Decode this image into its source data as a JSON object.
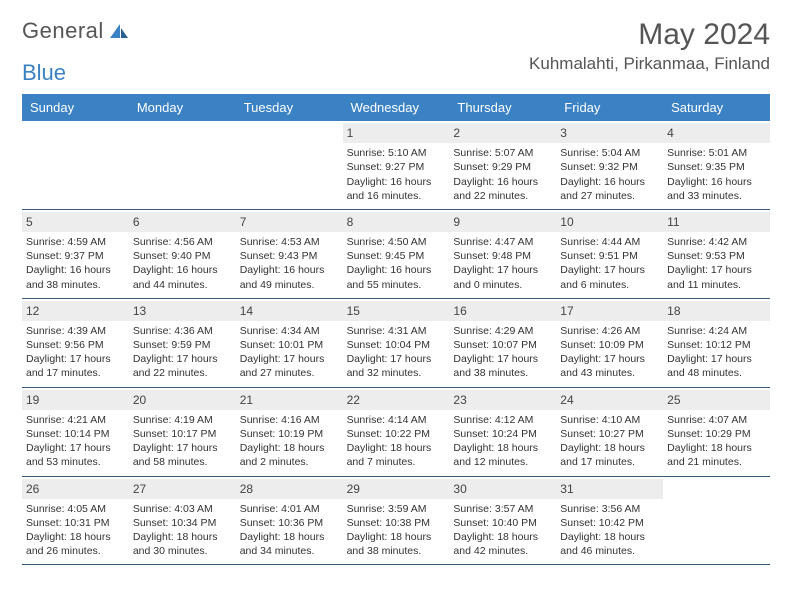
{
  "logo": {
    "text1": "General",
    "text2": "Blue"
  },
  "title": "May 2024",
  "location": "Kuhmalahti, Pirkanmaa, Finland",
  "colors": {
    "header_bg": "#3b82c4",
    "header_text": "#ffffff",
    "daynum_bg": "#ededed",
    "week_border": "#3b5a7a",
    "text": "#333333",
    "title_text": "#555555"
  },
  "day_names": [
    "Sunday",
    "Monday",
    "Tuesday",
    "Wednesday",
    "Thursday",
    "Friday",
    "Saturday"
  ],
  "weeks": [
    [
      {
        "day": "",
        "lines": [
          "",
          "",
          "",
          ""
        ]
      },
      {
        "day": "",
        "lines": [
          "",
          "",
          "",
          ""
        ]
      },
      {
        "day": "",
        "lines": [
          "",
          "",
          "",
          ""
        ]
      },
      {
        "day": "1",
        "lines": [
          "Sunrise: 5:10 AM",
          "Sunset: 9:27 PM",
          "Daylight: 16 hours",
          "and 16 minutes."
        ]
      },
      {
        "day": "2",
        "lines": [
          "Sunrise: 5:07 AM",
          "Sunset: 9:29 PM",
          "Daylight: 16 hours",
          "and 22 minutes."
        ]
      },
      {
        "day": "3",
        "lines": [
          "Sunrise: 5:04 AM",
          "Sunset: 9:32 PM",
          "Daylight: 16 hours",
          "and 27 minutes."
        ]
      },
      {
        "day": "4",
        "lines": [
          "Sunrise: 5:01 AM",
          "Sunset: 9:35 PM",
          "Daylight: 16 hours",
          "and 33 minutes."
        ]
      }
    ],
    [
      {
        "day": "5",
        "lines": [
          "Sunrise: 4:59 AM",
          "Sunset: 9:37 PM",
          "Daylight: 16 hours",
          "and 38 minutes."
        ]
      },
      {
        "day": "6",
        "lines": [
          "Sunrise: 4:56 AM",
          "Sunset: 9:40 PM",
          "Daylight: 16 hours",
          "and 44 minutes."
        ]
      },
      {
        "day": "7",
        "lines": [
          "Sunrise: 4:53 AM",
          "Sunset: 9:43 PM",
          "Daylight: 16 hours",
          "and 49 minutes."
        ]
      },
      {
        "day": "8",
        "lines": [
          "Sunrise: 4:50 AM",
          "Sunset: 9:45 PM",
          "Daylight: 16 hours",
          "and 55 minutes."
        ]
      },
      {
        "day": "9",
        "lines": [
          "Sunrise: 4:47 AM",
          "Sunset: 9:48 PM",
          "Daylight: 17 hours",
          "and 0 minutes."
        ]
      },
      {
        "day": "10",
        "lines": [
          "Sunrise: 4:44 AM",
          "Sunset: 9:51 PM",
          "Daylight: 17 hours",
          "and 6 minutes."
        ]
      },
      {
        "day": "11",
        "lines": [
          "Sunrise: 4:42 AM",
          "Sunset: 9:53 PM",
          "Daylight: 17 hours",
          "and 11 minutes."
        ]
      }
    ],
    [
      {
        "day": "12",
        "lines": [
          "Sunrise: 4:39 AM",
          "Sunset: 9:56 PM",
          "Daylight: 17 hours",
          "and 17 minutes."
        ]
      },
      {
        "day": "13",
        "lines": [
          "Sunrise: 4:36 AM",
          "Sunset: 9:59 PM",
          "Daylight: 17 hours",
          "and 22 minutes."
        ]
      },
      {
        "day": "14",
        "lines": [
          "Sunrise: 4:34 AM",
          "Sunset: 10:01 PM",
          "Daylight: 17 hours",
          "and 27 minutes."
        ]
      },
      {
        "day": "15",
        "lines": [
          "Sunrise: 4:31 AM",
          "Sunset: 10:04 PM",
          "Daylight: 17 hours",
          "and 32 minutes."
        ]
      },
      {
        "day": "16",
        "lines": [
          "Sunrise: 4:29 AM",
          "Sunset: 10:07 PM",
          "Daylight: 17 hours",
          "and 38 minutes."
        ]
      },
      {
        "day": "17",
        "lines": [
          "Sunrise: 4:26 AM",
          "Sunset: 10:09 PM",
          "Daylight: 17 hours",
          "and 43 minutes."
        ]
      },
      {
        "day": "18",
        "lines": [
          "Sunrise: 4:24 AM",
          "Sunset: 10:12 PM",
          "Daylight: 17 hours",
          "and 48 minutes."
        ]
      }
    ],
    [
      {
        "day": "19",
        "lines": [
          "Sunrise: 4:21 AM",
          "Sunset: 10:14 PM",
          "Daylight: 17 hours",
          "and 53 minutes."
        ]
      },
      {
        "day": "20",
        "lines": [
          "Sunrise: 4:19 AM",
          "Sunset: 10:17 PM",
          "Daylight: 17 hours",
          "and 58 minutes."
        ]
      },
      {
        "day": "21",
        "lines": [
          "Sunrise: 4:16 AM",
          "Sunset: 10:19 PM",
          "Daylight: 18 hours",
          "and 2 minutes."
        ]
      },
      {
        "day": "22",
        "lines": [
          "Sunrise: 4:14 AM",
          "Sunset: 10:22 PM",
          "Daylight: 18 hours",
          "and 7 minutes."
        ]
      },
      {
        "day": "23",
        "lines": [
          "Sunrise: 4:12 AM",
          "Sunset: 10:24 PM",
          "Daylight: 18 hours",
          "and 12 minutes."
        ]
      },
      {
        "day": "24",
        "lines": [
          "Sunrise: 4:10 AM",
          "Sunset: 10:27 PM",
          "Daylight: 18 hours",
          "and 17 minutes."
        ]
      },
      {
        "day": "25",
        "lines": [
          "Sunrise: 4:07 AM",
          "Sunset: 10:29 PM",
          "Daylight: 18 hours",
          "and 21 minutes."
        ]
      }
    ],
    [
      {
        "day": "26",
        "lines": [
          "Sunrise: 4:05 AM",
          "Sunset: 10:31 PM",
          "Daylight: 18 hours",
          "and 26 minutes."
        ]
      },
      {
        "day": "27",
        "lines": [
          "Sunrise: 4:03 AM",
          "Sunset: 10:34 PM",
          "Daylight: 18 hours",
          "and 30 minutes."
        ]
      },
      {
        "day": "28",
        "lines": [
          "Sunrise: 4:01 AM",
          "Sunset: 10:36 PM",
          "Daylight: 18 hours",
          "and 34 minutes."
        ]
      },
      {
        "day": "29",
        "lines": [
          "Sunrise: 3:59 AM",
          "Sunset: 10:38 PM",
          "Daylight: 18 hours",
          "and 38 minutes."
        ]
      },
      {
        "day": "30",
        "lines": [
          "Sunrise: 3:57 AM",
          "Sunset: 10:40 PM",
          "Daylight: 18 hours",
          "and 42 minutes."
        ]
      },
      {
        "day": "31",
        "lines": [
          "Sunrise: 3:56 AM",
          "Sunset: 10:42 PM",
          "Daylight: 18 hours",
          "and 46 minutes."
        ]
      },
      {
        "day": "",
        "lines": [
          "",
          "",
          "",
          ""
        ]
      }
    ]
  ]
}
